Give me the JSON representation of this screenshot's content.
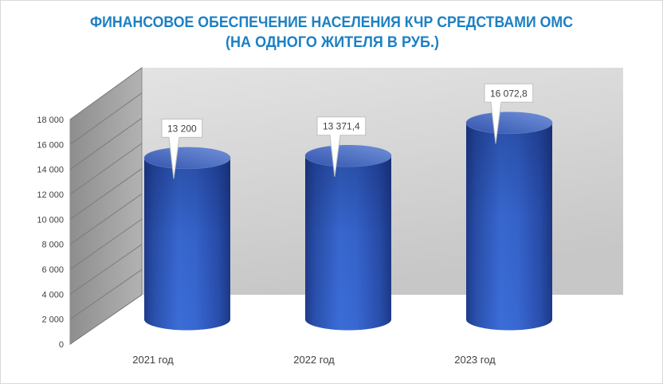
{
  "chart_data": {
    "type": "bar",
    "three_d": true,
    "cylindrical_bars": true,
    "title": "ФИНАНСОВОЕ ОБЕСПЕЧЕНИЕ НАСЕЛЕНИЯ КЧР СРЕДСТВАМИ ОМС",
    "subtitle": "(НА ОДНОГО ЖИТЕЛЯ В РУБ.)",
    "categories": [
      "2021 год",
      "2022 год",
      "2023 год"
    ],
    "values": [
      13200,
      13371.4,
      16072.8
    ],
    "data_labels": [
      "13 200",
      "13 371,4",
      "16 072,8"
    ],
    "xlabel": "",
    "ylabel": "",
    "ylim": [
      0,
      18000
    ],
    "yticks": [
      0,
      2000,
      4000,
      6000,
      8000,
      10000,
      12000,
      14000,
      16000,
      18000
    ],
    "ytick_labels": [
      "0",
      "2 000",
      "4 000",
      "6 000",
      "8 000",
      "10 000",
      "12 000",
      "14 000",
      "16 000",
      "18 000"
    ],
    "grid": true,
    "legend": false
  },
  "colors": {
    "title": "#1d80c3",
    "bar": "#3868d2",
    "text": "#404040",
    "gridline": "#7c7c7c",
    "callout_border": "#bfbfbf"
  }
}
